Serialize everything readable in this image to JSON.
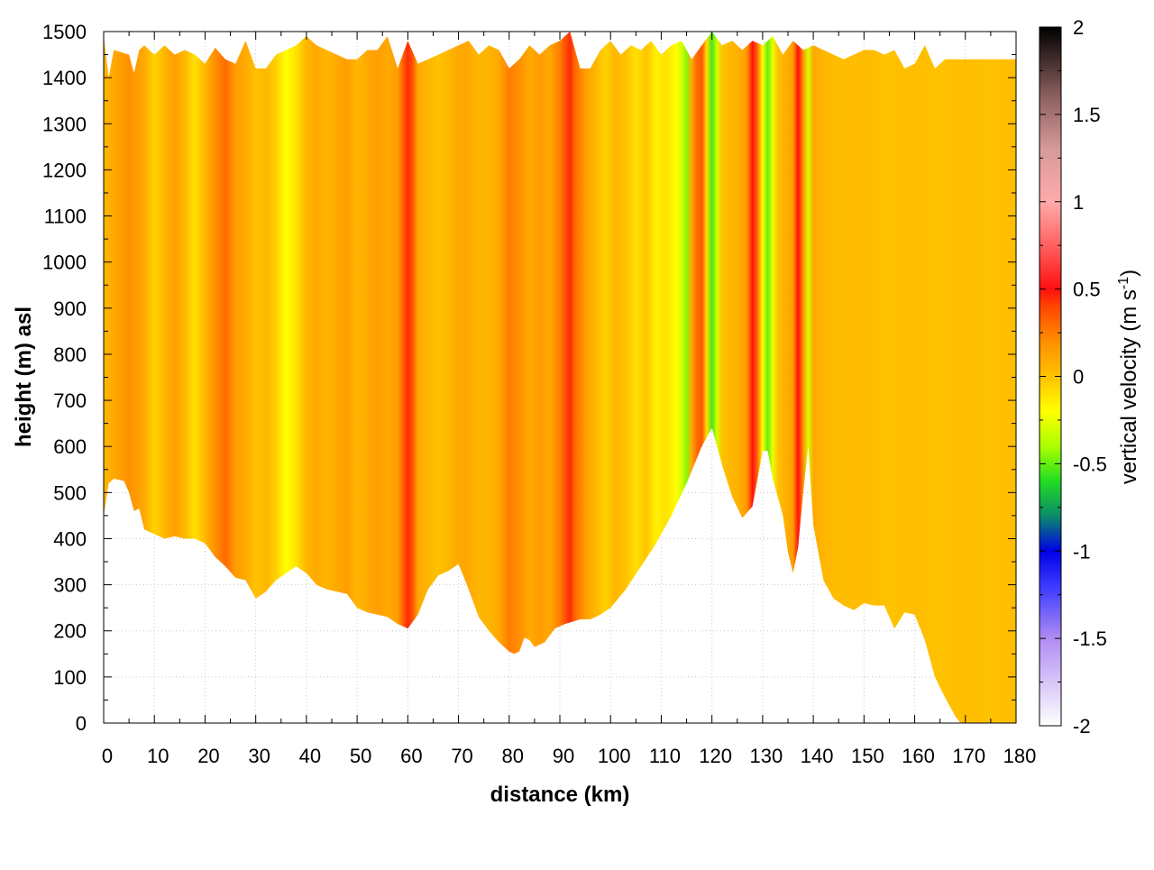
{
  "chart_data": {
    "type": "heatmap",
    "title": "",
    "xlabel": "distance (km)",
    "ylabel": "height (m) asl",
    "xlim": [
      0,
      180
    ],
    "ylim": [
      0,
      1500
    ],
    "x_ticks": [
      0,
      10,
      20,
      30,
      40,
      50,
      60,
      70,
      80,
      90,
      100,
      110,
      120,
      130,
      140,
      150,
      160,
      170,
      180
    ],
    "y_ticks": [
      0,
      100,
      200,
      300,
      400,
      500,
      600,
      700,
      800,
      900,
      1000,
      1100,
      1200,
      1300,
      1400,
      1500
    ],
    "grid": true,
    "colorbar": {
      "title_main": "vertical velocity (m s",
      "title_sup": "-1",
      "title_close": ")",
      "range": [
        -2,
        2
      ],
      "ticks": [
        "2",
        "1.5",
        "1",
        "0.5",
        "0",
        "-0.5",
        "-1",
        "-1.5",
        "-2"
      ],
      "palette": [
        {
          "value": -2.0,
          "color": "#ffffff"
        },
        {
          "value": -1.5,
          "color": "#b08cf2"
        },
        {
          "value": -1.2,
          "color": "#3a3aff"
        },
        {
          "value": -1.0,
          "color": "#0000e6"
        },
        {
          "value": -0.8,
          "color": "#0b8a6a"
        },
        {
          "value": -0.6,
          "color": "#22dd22"
        },
        {
          "value": -0.4,
          "color": "#aaff00"
        },
        {
          "value": -0.2,
          "color": "#ffff00"
        },
        {
          "value": 0.0,
          "color": "#ffc200"
        },
        {
          "value": 0.2,
          "color": "#ff9000"
        },
        {
          "value": 0.4,
          "color": "#ff4500"
        },
        {
          "value": 0.5,
          "color": "#ff1010"
        },
        {
          "value": 0.8,
          "color": "#ff7070"
        },
        {
          "value": 1.0,
          "color": "#ffaaaa"
        },
        {
          "value": 1.3,
          "color": "#d79a9a"
        },
        {
          "value": 1.6,
          "color": "#8e6060"
        },
        {
          "value": 2.0,
          "color": "#000000"
        }
      ]
    },
    "terrain_height_m": [
      [
        0,
        450
      ],
      [
        1,
        520
      ],
      [
        2,
        530
      ],
      [
        4,
        525
      ],
      [
        5,
        500
      ],
      [
        6,
        460
      ],
      [
        7,
        465
      ],
      [
        8,
        420
      ],
      [
        10,
        410
      ],
      [
        12,
        400
      ],
      [
        14,
        405
      ],
      [
        16,
        400
      ],
      [
        18,
        400
      ],
      [
        20,
        390
      ],
      [
        22,
        360
      ],
      [
        24,
        340
      ],
      [
        26,
        315
      ],
      [
        28,
        310
      ],
      [
        30,
        270
      ],
      [
        32,
        285
      ],
      [
        34,
        310
      ],
      [
        36,
        325
      ],
      [
        38,
        340
      ],
      [
        40,
        325
      ],
      [
        42,
        300
      ],
      [
        44,
        290
      ],
      [
        46,
        285
      ],
      [
        48,
        280
      ],
      [
        50,
        250
      ],
      [
        52,
        240
      ],
      [
        54,
        235
      ],
      [
        56,
        230
      ],
      [
        58,
        215
      ],
      [
        60,
        205
      ],
      [
        62,
        235
      ],
      [
        64,
        290
      ],
      [
        66,
        320
      ],
      [
        68,
        330
      ],
      [
        70,
        345
      ],
      [
        72,
        290
      ],
      [
        74,
        230
      ],
      [
        76,
        200
      ],
      [
        78,
        175
      ],
      [
        80,
        155
      ],
      [
        81,
        150
      ],
      [
        82,
        155
      ],
      [
        83,
        185
      ],
      [
        84,
        180
      ],
      [
        85,
        165
      ],
      [
        87,
        175
      ],
      [
        89,
        205
      ],
      [
        91,
        215
      ],
      [
        94,
        225
      ],
      [
        96,
        225
      ],
      [
        98,
        235
      ],
      [
        100,
        250
      ],
      [
        103,
        290
      ],
      [
        106,
        340
      ],
      [
        109,
        390
      ],
      [
        112,
        450
      ],
      [
        115,
        520
      ],
      [
        118,
        600
      ],
      [
        120,
        640
      ],
      [
        122,
        560
      ],
      [
        124,
        490
      ],
      [
        126,
        445
      ],
      [
        128,
        470
      ],
      [
        130,
        590
      ],
      [
        131,
        590
      ],
      [
        132,
        530
      ],
      [
        134,
        450
      ],
      [
        135,
        370
      ],
      [
        136,
        325
      ],
      [
        137,
        380
      ],
      [
        138,
        500
      ],
      [
        139,
        600
      ],
      [
        140,
        430
      ],
      [
        142,
        310
      ],
      [
        144,
        270
      ],
      [
        146,
        255
      ],
      [
        148,
        245
      ],
      [
        150,
        260
      ],
      [
        152,
        255
      ],
      [
        154,
        255
      ],
      [
        156,
        205
      ],
      [
        158,
        240
      ],
      [
        160,
        235
      ],
      [
        162,
        180
      ],
      [
        164,
        100
      ],
      [
        166,
        55
      ],
      [
        168,
        15
      ],
      [
        169,
        0
      ],
      [
        180,
        0
      ]
    ],
    "top_height_m": [
      [
        0,
        1490
      ],
      [
        1,
        1400
      ],
      [
        2,
        1460
      ],
      [
        5,
        1450
      ],
      [
        6,
        1410
      ],
      [
        7,
        1460
      ],
      [
        8,
        1470
      ],
      [
        10,
        1450
      ],
      [
        12,
        1470
      ],
      [
        14,
        1450
      ],
      [
        16,
        1460
      ],
      [
        18,
        1450
      ],
      [
        20,
        1430
      ],
      [
        22,
        1465
      ],
      [
        24,
        1440
      ],
      [
        26,
        1430
      ],
      [
        28,
        1480
      ],
      [
        30,
        1420
      ],
      [
        32,
        1420
      ],
      [
        34,
        1450
      ],
      [
        36,
        1460
      ],
      [
        38,
        1470
      ],
      [
        40,
        1490
      ],
      [
        42,
        1470
      ],
      [
        44,
        1460
      ],
      [
        46,
        1450
      ],
      [
        48,
        1440
      ],
      [
        50,
        1440
      ],
      [
        52,
        1460
      ],
      [
        54,
        1460
      ],
      [
        56,
        1490
      ],
      [
        58,
        1420
      ],
      [
        60,
        1480
      ],
      [
        62,
        1430
      ],
      [
        64,
        1440
      ],
      [
        66,
        1450
      ],
      [
        68,
        1460
      ],
      [
        70,
        1470
      ],
      [
        72,
        1480
      ],
      [
        74,
        1450
      ],
      [
        76,
        1470
      ],
      [
        78,
        1460
      ],
      [
        80,
        1420
      ],
      [
        82,
        1440
      ],
      [
        84,
        1470
      ],
      [
        86,
        1450
      ],
      [
        88,
        1470
      ],
      [
        90,
        1480
      ],
      [
        92,
        1500
      ],
      [
        94,
        1420
      ],
      [
        96,
        1420
      ],
      [
        98,
        1460
      ],
      [
        100,
        1480
      ],
      [
        102,
        1450
      ],
      [
        104,
        1470
      ],
      [
        106,
        1460
      ],
      [
        108,
        1480
      ],
      [
        110,
        1450
      ],
      [
        112,
        1470
      ],
      [
        114,
        1480
      ],
      [
        116,
        1440
      ],
      [
        118,
        1470
      ],
      [
        120,
        1500
      ],
      [
        122,
        1470
      ],
      [
        124,
        1480
      ],
      [
        126,
        1460
      ],
      [
        128,
        1480
      ],
      [
        130,
        1470
      ],
      [
        132,
        1490
      ],
      [
        134,
        1450
      ],
      [
        136,
        1480
      ],
      [
        138,
        1460
      ],
      [
        140,
        1470
      ],
      [
        142,
        1460
      ],
      [
        144,
        1450
      ],
      [
        146,
        1440
      ],
      [
        148,
        1450
      ],
      [
        150,
        1460
      ],
      [
        152,
        1460
      ],
      [
        154,
        1450
      ],
      [
        156,
        1460
      ],
      [
        158,
        1420
      ],
      [
        160,
        1430
      ],
      [
        162,
        1470
      ],
      [
        164,
        1420
      ],
      [
        166,
        1440
      ],
      [
        168,
        1440
      ],
      [
        180,
        1440
      ]
    ],
    "columns": [
      {
        "x": 0,
        "w": 0.05
      },
      {
        "x": 2,
        "w": 0.1
      },
      {
        "x": 5,
        "w": 0.2
      },
      {
        "x": 8,
        "w": 0.1
      },
      {
        "x": 10,
        "w": -0.05
      },
      {
        "x": 12,
        "w": 0.05
      },
      {
        "x": 14,
        "w": 0.15
      },
      {
        "x": 16,
        "w": 0.05
      },
      {
        "x": 18,
        "w": -0.1
      },
      {
        "x": 20,
        "w": 0.05
      },
      {
        "x": 22,
        "w": 0.2
      },
      {
        "x": 24,
        "w": 0.3
      },
      {
        "x": 26,
        "w": 0.15
      },
      {
        "x": 28,
        "w": 0.1
      },
      {
        "x": 30,
        "w": 0.0
      },
      {
        "x": 32,
        "w": 0.05
      },
      {
        "x": 34,
        "w": -0.05
      },
      {
        "x": 36,
        "w": -0.2
      },
      {
        "x": 38,
        "w": -0.1
      },
      {
        "x": 40,
        "w": 0.05
      },
      {
        "x": 42,
        "w": 0.1
      },
      {
        "x": 44,
        "w": 0.05
      },
      {
        "x": 46,
        "w": 0.1
      },
      {
        "x": 48,
        "w": 0.15
      },
      {
        "x": 50,
        "w": 0.05
      },
      {
        "x": 52,
        "w": 0.1
      },
      {
        "x": 54,
        "w": 0.15
      },
      {
        "x": 56,
        "w": 0.1
      },
      {
        "x": 58,
        "w": 0.15
      },
      {
        "x": 60,
        "w": 0.45
      },
      {
        "x": 61,
        "w": 0.35
      },
      {
        "x": 62,
        "w": 0.1
      },
      {
        "x": 64,
        "w": 0.05
      },
      {
        "x": 66,
        "w": 0.0
      },
      {
        "x": 68,
        "w": 0.05
      },
      {
        "x": 70,
        "w": 0.1
      },
      {
        "x": 72,
        "w": 0.1
      },
      {
        "x": 74,
        "w": 0.05
      },
      {
        "x": 76,
        "w": 0.05
      },
      {
        "x": 78,
        "w": 0.1
      },
      {
        "x": 80,
        "w": 0.25
      },
      {
        "x": 82,
        "w": 0.2
      },
      {
        "x": 84,
        "w": 0.1
      },
      {
        "x": 86,
        "w": 0.15
      },
      {
        "x": 88,
        "w": 0.1
      },
      {
        "x": 90,
        "w": 0.25
      },
      {
        "x": 92,
        "w": 0.45
      },
      {
        "x": 93,
        "w": 0.3
      },
      {
        "x": 95,
        "w": 0.15
      },
      {
        "x": 97,
        "w": 0.05
      },
      {
        "x": 99,
        "w": -0.05
      },
      {
        "x": 101,
        "w": 0.05
      },
      {
        "x": 103,
        "w": 0.0
      },
      {
        "x": 105,
        "w": -0.1
      },
      {
        "x": 107,
        "w": 0.0
      },
      {
        "x": 109,
        "w": -0.15
      },
      {
        "x": 111,
        "w": -0.1
      },
      {
        "x": 113,
        "w": -0.2
      },
      {
        "x": 114,
        "w": -0.3
      },
      {
        "x": 115,
        "w": -0.45
      },
      {
        "x": 116,
        "w": 0.1
      },
      {
        "x": 117,
        "w": 0.3
      },
      {
        "x": 118,
        "w": 0.35
      },
      {
        "x": 119,
        "w": -0.1
      },
      {
        "x": 120,
        "w": -0.55
      },
      {
        "x": 121,
        "w": -0.3
      },
      {
        "x": 122,
        "w": 0.0
      },
      {
        "x": 124,
        "w": 0.05
      },
      {
        "x": 126,
        "w": 0.1
      },
      {
        "x": 127,
        "w": 0.2
      },
      {
        "x": 128,
        "w": 0.5
      },
      {
        "x": 129,
        "w": 0.3
      },
      {
        "x": 130,
        "w": -0.2
      },
      {
        "x": 131,
        "w": -0.5
      },
      {
        "x": 132,
        "w": -0.25
      },
      {
        "x": 133,
        "w": 0.0
      },
      {
        "x": 134,
        "w": 0.05
      },
      {
        "x": 136,
        "w": 0.15
      },
      {
        "x": 137,
        "w": 0.5
      },
      {
        "x": 138,
        "w": 0.2
      },
      {
        "x": 139,
        "w": -0.3
      },
      {
        "x": 140,
        "w": 0.1
      },
      {
        "x": 142,
        "w": 0.05
      },
      {
        "x": 145,
        "w": 0.02
      },
      {
        "x": 150,
        "w": 0.03
      },
      {
        "x": 155,
        "w": 0.0
      },
      {
        "x": 160,
        "w": 0.02
      },
      {
        "x": 165,
        "w": 0.0
      },
      {
        "x": 170,
        "w": 0.02
      },
      {
        "x": 175,
        "w": 0.0
      },
      {
        "x": 180,
        "w": 0.02
      }
    ]
  }
}
